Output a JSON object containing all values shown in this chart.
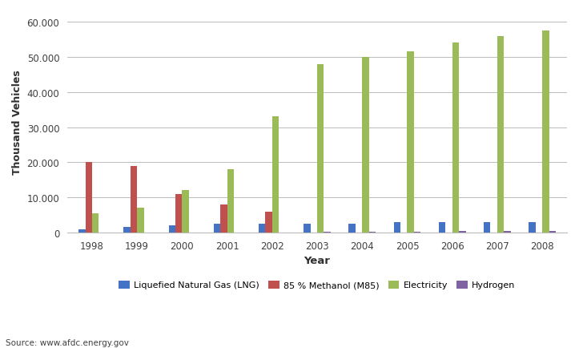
{
  "xlabel": "Year",
  "ylabel": "Thousand Vehicles",
  "source": "Source: www.afdc.energy.gov",
  "years": [
    1998,
    1999,
    2000,
    2001,
    2002,
    2003,
    2004,
    2005,
    2006,
    2007,
    2008
  ],
  "series": {
    "Liquefied Natural Gas (LNG)": {
      "values": [
        1000,
        1500,
        2000,
        2500,
        2500,
        2500,
        2500,
        3000,
        3000,
        3000,
        3000
      ],
      "color": "#4472C4"
    },
    "85 % Methanol (M85)": {
      "values": [
        20000,
        19000,
        11000,
        8000,
        6000,
        0,
        0,
        0,
        0,
        0,
        0
      ],
      "color": "#C0504D"
    },
    "Electricity": {
      "values": [
        5500,
        7000,
        12000,
        18000,
        33000,
        48000,
        50000,
        51500,
        54000,
        56000,
        57500
      ],
      "color": "#9BBB59"
    },
    "Hydrogen": {
      "values": [
        0,
        0,
        0,
        0,
        0,
        200,
        300,
        300,
        400,
        400,
        500
      ],
      "color": "#8064A2"
    }
  },
  "ylim": [
    0,
    63000
  ],
  "yticks": [
    0,
    10000,
    20000,
    30000,
    40000,
    50000,
    60000
  ],
  "ytick_labels": [
    "0",
    "10.000",
    "20.000",
    "30.000",
    "40.000",
    "50.000",
    "60.000"
  ],
  "background_color": "#FFFFFF",
  "plot_bg_color": "#FFFFFF",
  "grid_color": "#BBBBBB",
  "bar_width": 0.15,
  "legend_labels": [
    "Liquefied Natural Gas (LNG)",
    "85 % Methanol (M85)",
    "Electricity",
    "Hydrogen"
  ]
}
